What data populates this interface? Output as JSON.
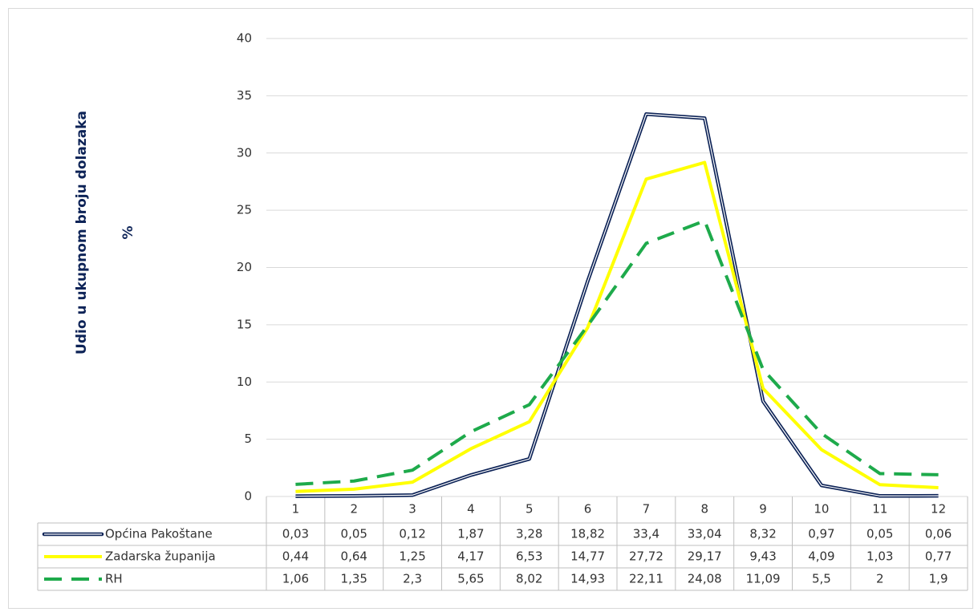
{
  "chart_data": {
    "type": "line",
    "y_axis_label": "Udio u ukupnom broju dolazaka",
    "y_axis_unit": "%",
    "categories": [
      "1",
      "2",
      "3",
      "4",
      "5",
      "6",
      "7",
      "8",
      "9",
      "10",
      "11",
      "12"
    ],
    "series": [
      {
        "name": "Općina Pakoštane",
        "color": "#0d2357",
        "style": "double",
        "values": [
          0.03,
          0.05,
          0.12,
          1.87,
          3.28,
          18.82,
          33.4,
          33.04,
          8.32,
          0.97,
          0.05,
          0.06
        ],
        "value_labels": [
          "0,03",
          "0,05",
          "0,12",
          "1,87",
          "3,28",
          "18,82",
          "33,4",
          "33,04",
          "8,32",
          "0,97",
          "0,05",
          "0,06"
        ]
      },
      {
        "name": "Zadarska županija",
        "color": "#ffff00",
        "style": "solid",
        "values": [
          0.44,
          0.64,
          1.25,
          4.17,
          6.53,
          14.77,
          27.72,
          29.17,
          9.43,
          4.09,
          1.03,
          0.77
        ],
        "value_labels": [
          "0,44",
          "0,64",
          "1,25",
          "4,17",
          "6,53",
          "14,77",
          "27,72",
          "29,17",
          "9,43",
          "4,09",
          "1,03",
          "0,77"
        ]
      },
      {
        "name": "RH",
        "color": "#1eaa4b",
        "style": "dashed",
        "values": [
          1.06,
          1.35,
          2.3,
          5.65,
          8.02,
          14.93,
          22.11,
          24.08,
          11.09,
          5.5,
          2,
          1.9
        ],
        "value_labels": [
          "1,06",
          "1,35",
          "2,3",
          "5,65",
          "8,02",
          "14,93",
          "22,11",
          "24,08",
          "11,09",
          "5,5",
          "2",
          "1,9"
        ]
      }
    ],
    "ylim": [
      0,
      40
    ],
    "yticks": [
      0,
      5,
      10,
      15,
      20,
      25,
      30,
      35,
      40
    ],
    "grid": true
  }
}
